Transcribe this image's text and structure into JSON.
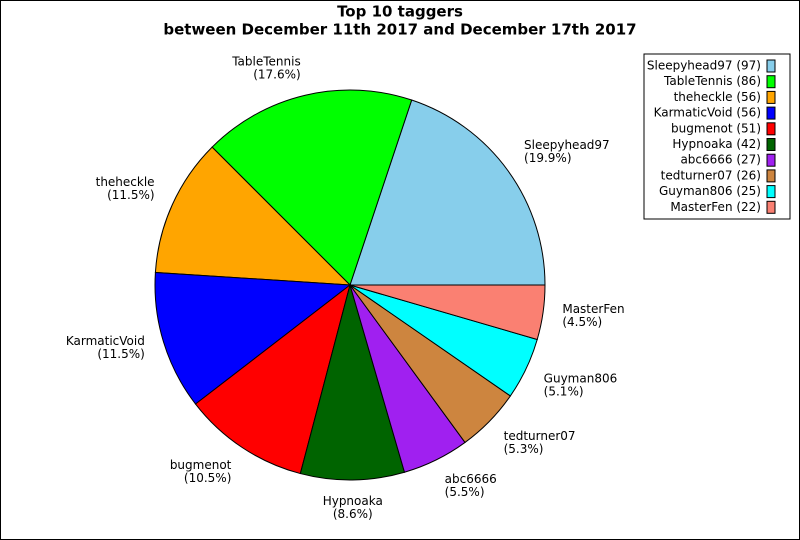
{
  "chart_data": {
    "type": "pie",
    "title": "Top 10 taggers",
    "subtitle": "between December 11th 2017 and December 17th 2017",
    "categories": [
      "Sleepyhead97",
      "TableTennis",
      "theheckle",
      "KarmaticVoid",
      "bugmenot",
      "Hypnoaka",
      "abc6666",
      "tedturner07",
      "Guyman806",
      "MasterFen"
    ],
    "values": [
      97,
      86,
      56,
      56,
      51,
      42,
      27,
      26,
      25,
      22
    ],
    "percent_labels": [
      "(19.9%)",
      "(17.6%)",
      "(11.5%)",
      "(11.5%)",
      "(10.5%)",
      "(8.6%)",
      "(5.5%)",
      "(5.3%)",
      "(5.1%)",
      "(4.5%)"
    ],
    "legend_labels": [
      "Sleepyhead97 (97)",
      "TableTennis (86)",
      "theheckle (56)",
      "KarmaticVoid (56)",
      "bugmenot (51)",
      "Hypnoaka (42)",
      "abc6666 (27)",
      "tedturner07 (26)",
      "Guyman806 (25)",
      "MasterFen (22)"
    ],
    "colors": [
      "#87ceeb",
      "#00ff00",
      "#ffa500",
      "#0000ff",
      "#ff0000",
      "#006400",
      "#a020f0",
      "#cd853f",
      "#00ffff",
      "#fa8072"
    ],
    "legend_position": "upper right"
  }
}
